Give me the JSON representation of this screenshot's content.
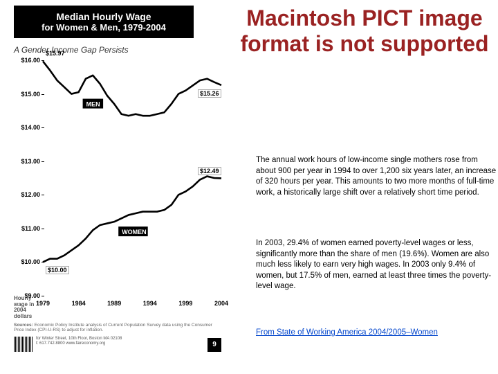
{
  "chart": {
    "type": "line",
    "header_line1": "Median Hourly Wage",
    "header_line2": "for Women & Men, 1979-2004",
    "subtitle": "A Gender Income Gap Persists",
    "ylim": [
      9.0,
      16.0
    ],
    "yticks": [
      9.0,
      10.0,
      11.0,
      12.0,
      13.0,
      14.0,
      15.0,
      16.0
    ],
    "ytick_labels": [
      "$9.00",
      "$10.00",
      "$11.00",
      "$12.00",
      "$13.00",
      "$14.00",
      "$15.00",
      "$16.00"
    ],
    "xlim": [
      1979,
      2004
    ],
    "xticks": [
      1979,
      1984,
      1989,
      1994,
      1999,
      2004
    ],
    "xtick_labels": [
      "1979",
      "1984",
      "1989",
      "1994",
      "1999",
      "2004"
    ],
    "line_width": 2.6,
    "line_color": "#000000",
    "grid_color": "#cccccc",
    "background_color": "#ffffff",
    "series": {
      "men": {
        "label": "MEN",
        "points": [
          [
            1979,
            15.97
          ],
          [
            1980,
            15.7
          ],
          [
            1981,
            15.4
          ],
          [
            1982,
            15.2
          ],
          [
            1983,
            15.0
          ],
          [
            1984,
            15.05
          ],
          [
            1985,
            15.45
          ],
          [
            1986,
            15.55
          ],
          [
            1987,
            15.3
          ],
          [
            1988,
            14.95
          ],
          [
            1989,
            14.7
          ],
          [
            1990,
            14.4
          ],
          [
            1991,
            14.35
          ],
          [
            1992,
            14.4
          ],
          [
            1993,
            14.35
          ],
          [
            1994,
            14.35
          ],
          [
            1995,
            14.4
          ],
          [
            1996,
            14.45
          ],
          [
            1997,
            14.7
          ],
          [
            1998,
            15.0
          ],
          [
            1999,
            15.1
          ],
          [
            2000,
            15.25
          ],
          [
            2001,
            15.4
          ],
          [
            2002,
            15.45
          ],
          [
            2003,
            15.35
          ],
          [
            2004,
            15.26
          ]
        ]
      },
      "women": {
        "label": "WOMEN",
        "points": [
          [
            1979,
            10.0
          ],
          [
            1980,
            10.1
          ],
          [
            1981,
            10.1
          ],
          [
            1982,
            10.2
          ],
          [
            1983,
            10.35
          ],
          [
            1984,
            10.5
          ],
          [
            1985,
            10.7
          ],
          [
            1986,
            10.95
          ],
          [
            1987,
            11.1
          ],
          [
            1988,
            11.15
          ],
          [
            1989,
            11.2
          ],
          [
            1990,
            11.3
          ],
          [
            1991,
            11.4
          ],
          [
            1992,
            11.45
          ],
          [
            1993,
            11.5
          ],
          [
            1994,
            11.5
          ],
          [
            1995,
            11.5
          ],
          [
            1996,
            11.55
          ],
          [
            1997,
            11.7
          ],
          [
            1998,
            12.0
          ],
          [
            1999,
            12.1
          ],
          [
            2000,
            12.25
          ],
          [
            2001,
            12.45
          ],
          [
            2002,
            12.55
          ],
          [
            2003,
            12.5
          ],
          [
            2004,
            12.49
          ]
        ]
      }
    },
    "callouts": {
      "men_start": "$15.97",
      "men_end": "$15.26",
      "women_start": "$10.00",
      "women_end": "$12.49"
    },
    "axis_label": "Hourly wage in 2004 dollars",
    "sources_label": "Sources:",
    "sources_text": "Economic Policy Institute analysis of Current Population Survey data using the Consumer Price Index (CPI-U-RS) to adjust for inflation.",
    "address": "for Winter Street, 10th Floor, Boston MA 02108",
    "contact": "t: 617.742.8800  www.faireconomy.org",
    "page_number": "9"
  },
  "error_banner": "Macintosh PICT image format is not supported",
  "error_color": "#9a2222",
  "paragraph1": "The annual work hours of low-income single mothers rose from about 900 per year in 1994 to over 1,200 six years later, an increase of 320 hours per year. This amounts to two more months of full-time work, a historically large shift over a relatively short time period.",
  "paragraph2": "In 2003, 29.4% of women earned poverty-level wages or less, significantly more than the share of men (19.6%). Women are also much less likely to earn very high wages. In 2003 only 9.4% of women, but 17.5% of men, earned at least three times the poverty-level wage.",
  "link_text": "From State of Working America 2004/2005–Women",
  "text_fontsize": 11.5,
  "text_color": "#000000"
}
